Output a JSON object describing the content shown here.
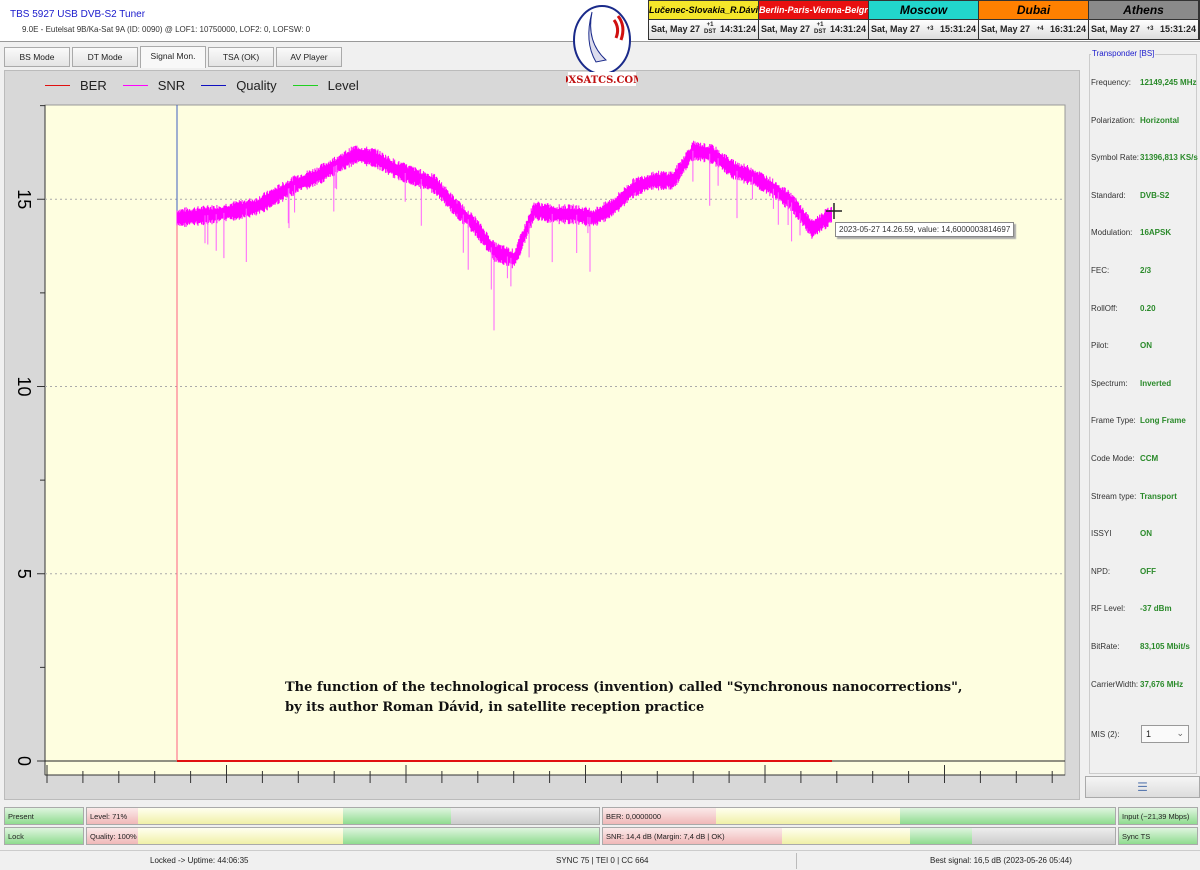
{
  "header": {
    "title": "TBS 5927 USB DVB-S2 Tuner",
    "subtitle": "9.0E - Eutelsat 9B/Ka-Sat 9A (ID: 0090) @ LOF1: 10750000, LOF2: 0, LOFSW: 0"
  },
  "tabs": [
    {
      "label": "BS Mode"
    },
    {
      "label": "DT Mode"
    },
    {
      "label": "Signal Mon.",
      "active": true
    },
    {
      "label": "TSA (OK)"
    },
    {
      "label": "AV Player"
    }
  ],
  "logo": {
    "text": "DXSATCS.COM"
  },
  "clocks": [
    {
      "name": "Lučenec-Slovakia_R.Dávid",
      "date": "Sat, May 27",
      "offset": "+1",
      "dst": "DST",
      "time": "14:31:24",
      "bg": "#f5e62a",
      "fg": "#000"
    },
    {
      "name": "Berlin-Paris-Vienna-Belgrade",
      "date": "Sat, May 27",
      "offset": "+1",
      "dst": "DST",
      "time": "14:31:24",
      "bg": "#e81010",
      "fg": "#fff"
    },
    {
      "name": "Moscow",
      "date": "Sat, May 27",
      "offset": "+3",
      "dst": "",
      "time": "15:31:24",
      "bg": "#22d6cc",
      "fg": "#000"
    },
    {
      "name": "Dubai",
      "date": "Sat, May 27",
      "offset": "+4",
      "dst": "",
      "time": "16:31:24",
      "bg": "#ff8000",
      "fg": "#000"
    },
    {
      "name": "Athens",
      "date": "Sat, May 27",
      "offset": "+3",
      "dst": "",
      "time": "15:31:24",
      "bg": "#8a8a8a",
      "fg": "#000"
    }
  ],
  "chart_data": {
    "type": "line",
    "legend": [
      {
        "name": "BER",
        "color": "#e01010"
      },
      {
        "name": "SNR",
        "color": "#ff00ff"
      },
      {
        "name": "Quality",
        "color": "#1010c0"
      },
      {
        "name": "Level",
        "color": "#20d020"
      }
    ],
    "legend_placement": "top-left",
    "ylim": [
      0,
      17.4
    ],
    "yticks": [
      "0",
      "5",
      "10",
      "15"
    ],
    "grid": "dotted horizontal at 5, 10, 15",
    "background": "#fefee0",
    "series": [
      {
        "name": "SNR",
        "values": [
          14.5,
          14.55,
          14.6,
          14.7,
          14.8,
          15.1,
          15.4,
          15.6,
          15.9,
          16.2,
          16.1,
          15.8,
          15.6,
          15.4,
          14.8,
          14.3,
          13.6,
          13.4,
          14.7,
          14.6,
          14.6,
          14.5,
          14.8,
          15.3,
          15.5,
          15.5,
          16.3,
          16.2,
          15.8,
          15.6,
          15.3,
          14.9,
          14.2,
          14.6
        ]
      },
      {
        "name": "BER",
        "values": [
          0,
          0
        ]
      }
    ],
    "tooltip": "2023-05-27 14.26.59, value: 14,6000003814697"
  },
  "caption": {
    "line1": "The function of the technological process (invention) called \"Synchronous nanocorrections\",",
    "line2": "by its author Roman Dávid, in satellite reception practice"
  },
  "transponder": {
    "title": "Transponder [BS]",
    "fields": [
      {
        "label": "Frequency:",
        "value": "12149,245 MHz"
      },
      {
        "label": "Polarization:",
        "value": "Horizontal"
      },
      {
        "label": "Symbol Rate:",
        "value": "31396,813 KS/s"
      },
      {
        "label": "Standard:",
        "value": "DVB-S2"
      },
      {
        "label": "Modulation:",
        "value": "16APSK"
      },
      {
        "label": "FEC:",
        "value": "2/3"
      },
      {
        "label": "RollOff:",
        "value": "0.20"
      },
      {
        "label": "Pilot:",
        "value": "ON"
      },
      {
        "label": "Spectrum:",
        "value": "Inverted"
      },
      {
        "label": "Frame Type:",
        "value": "Long Frame"
      },
      {
        "label": "Code Mode:",
        "value": "CCM"
      },
      {
        "label": "Stream type:",
        "value": "Transport"
      },
      {
        "label": "ISSYI",
        "value": "ON"
      },
      {
        "label": "NPD:",
        "value": "OFF"
      },
      {
        "label": "RF Level:",
        "value": "-37 dBm"
      },
      {
        "label": "BitRate:",
        "value": "83,105 Mbit/s"
      },
      {
        "label": "CarrierWidth:",
        "value": "37,676 MHz"
      }
    ],
    "mis_label": "MIS (2):",
    "mis_value": "1"
  },
  "meters": {
    "present": "Present",
    "lock": "Lock",
    "level": "Level: 71%",
    "quality": "Quality: 100%",
    "ber": "BER: 0,0000000",
    "snr": "SNR: 14,4 dB (Margin: 7,4 dB | OK)",
    "input": "Input (~21,39 Mbps)",
    "sync": "Sync TS",
    "level_pct": 71,
    "quality_pct": 100
  },
  "status": {
    "uptime": "Locked -> Uptime: 44:06:35",
    "sync": "SYNC 75 | TEI 0 | CC 664",
    "best": "Best signal: 16,5 dB (2023-05-26 05:44)"
  }
}
